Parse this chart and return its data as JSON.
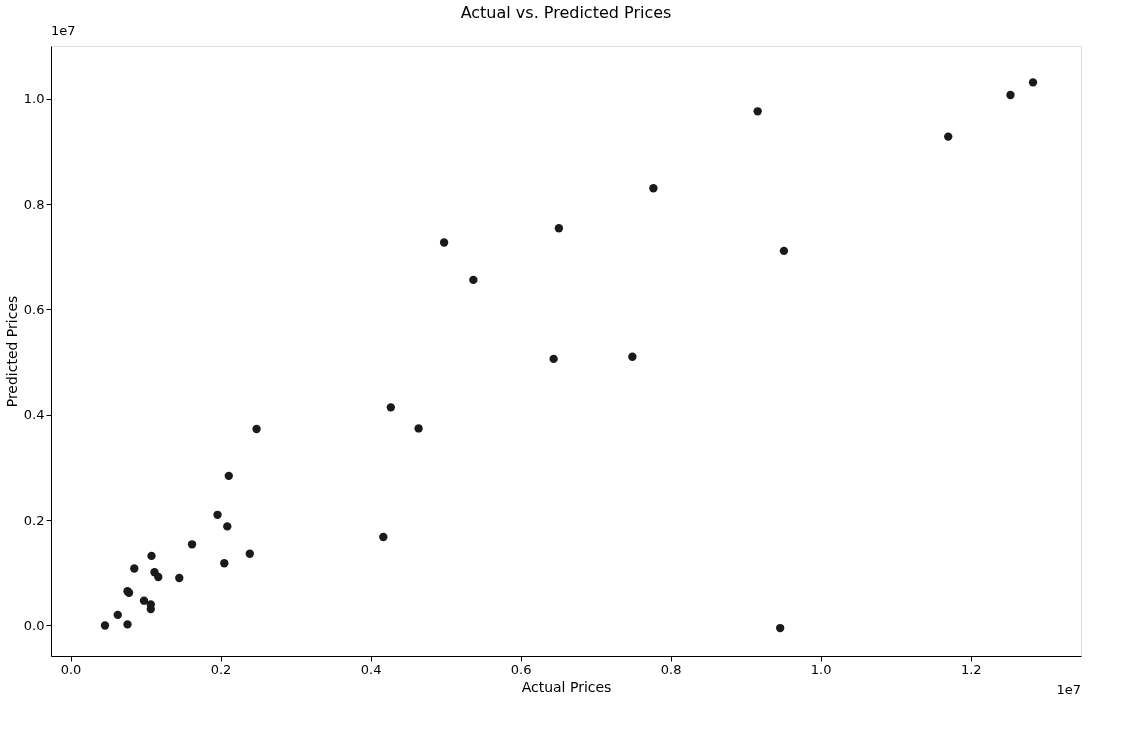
{
  "chart_data": {
    "type": "scatter",
    "title": "Actual vs. Predicted Prices",
    "xlabel": "Actual Prices",
    "ylabel": "Predicted Prices",
    "annotations": [
      "1e7",
      "1e7"
    ],
    "x": [
      0.046,
      0.063,
      0.076,
      0.076,
      0.078,
      0.085,
      0.098,
      0.107,
      0.107,
      0.108,
      0.112,
      0.117,
      0.145,
      0.162,
      0.196,
      0.205,
      0.209,
      0.211,
      0.239,
      0.248,
      0.417,
      0.427,
      0.464,
      0.498,
      0.537,
      0.651,
      0.644,
      0.749,
      0.777,
      0.916,
      0.946,
      0.951,
      1.17,
      1.253,
      1.283
    ],
    "series": [
      {
        "color": "#1a1a1a",
        "values": [
          0.0,
          0.02,
          0.002,
          0.065,
          0.062,
          0.108,
          0.047,
          0.04,
          0.031,
          0.132,
          0.101,
          0.092,
          0.09,
          0.154,
          0.21,
          0.118,
          0.188,
          0.284,
          0.136,
          0.373,
          0.168,
          0.414,
          0.374,
          0.727,
          0.656,
          0.754,
          0.506,
          0.51,
          0.83,
          0.976,
          -0.005,
          0.711,
          0.928,
          1.007,
          1.031
        ]
      }
    ],
    "xlim": [
      -0.026,
      1.347
    ],
    "ylim": [
      -0.058,
      1.1
    ],
    "xticks": [
      {
        "value": 0.0,
        "label": "0.0"
      },
      {
        "value": 0.2,
        "label": "0.2"
      },
      {
        "value": 0.4,
        "label": "0.4"
      },
      {
        "value": 0.6,
        "label": "0.6"
      },
      {
        "value": 0.8,
        "label": "0.8"
      },
      {
        "value": 1.0,
        "label": "1.0"
      },
      {
        "value": 1.2,
        "label": "1.2"
      }
    ],
    "yticks": [
      {
        "value": 0.0,
        "label": "0.0"
      },
      {
        "value": 0.2,
        "label": "0.2"
      },
      {
        "value": 0.4,
        "label": "0.4"
      },
      {
        "value": 0.6,
        "label": "0.6"
      },
      {
        "value": 0.8,
        "label": "0.8"
      },
      {
        "value": 1.0,
        "label": "1.0"
      }
    ],
    "grid": false,
    "legend": false
  }
}
